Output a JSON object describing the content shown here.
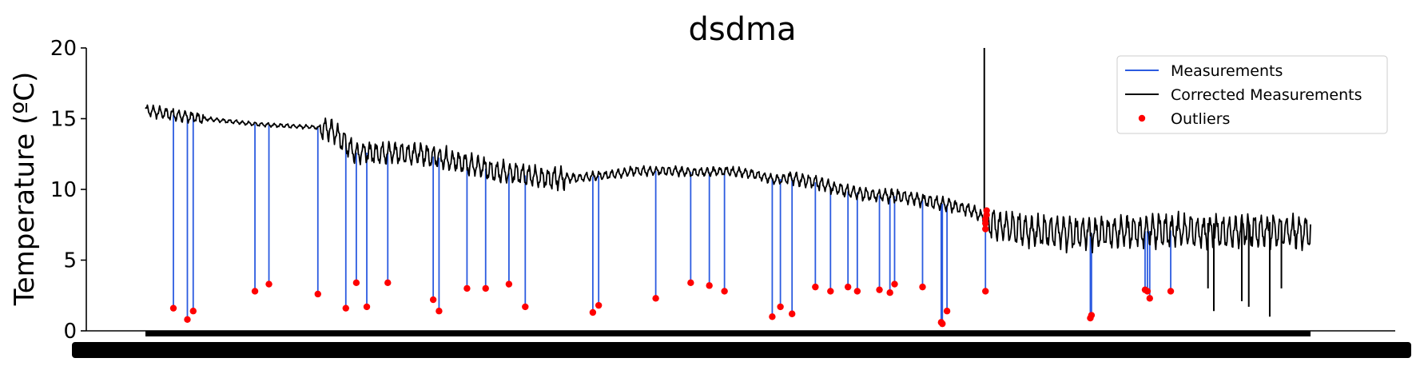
{
  "chart_data": {
    "type": "line",
    "title": "dsdma",
    "ylabel": "Temperature (ºC)",
    "xlabel": "",
    "ylim": [
      0,
      20
    ],
    "yticks": [
      0,
      5,
      10,
      15,
      20
    ],
    "xlim": [
      0,
      1
    ],
    "grid": false,
    "legend_placement": "top-right",
    "series": [
      {
        "name": "Measurements",
        "color": "#2b5be0",
        "kind": "line"
      },
      {
        "name": "Corrected Measurements",
        "color": "#000000",
        "kind": "line"
      },
      {
        "name": "Outliers",
        "color": "#ff0000",
        "kind": "marker"
      }
    ],
    "corrected_trend": [
      [
        0.0,
        15.6
      ],
      [
        0.015,
        15.4
      ],
      [
        0.03,
        15.2
      ],
      [
        0.05,
        15.0
      ],
      [
        0.075,
        14.8
      ],
      [
        0.095,
        14.6
      ],
      [
        0.12,
        14.5
      ],
      [
        0.145,
        14.4
      ],
      [
        0.16,
        14.2
      ],
      [
        0.18,
        12.6
      ],
      [
        0.21,
        12.6
      ],
      [
        0.235,
        12.5
      ],
      [
        0.255,
        12.2
      ],
      [
        0.275,
        11.8
      ],
      [
        0.3,
        11.3
      ],
      [
        0.325,
        11.0
      ],
      [
        0.345,
        10.8
      ],
      [
        0.37,
        10.8
      ],
      [
        0.395,
        11.0
      ],
      [
        0.42,
        11.3
      ],
      [
        0.45,
        11.3
      ],
      [
        0.475,
        11.2
      ],
      [
        0.5,
        11.3
      ],
      [
        0.52,
        11.1
      ],
      [
        0.54,
        10.7
      ],
      [
        0.555,
        10.8
      ],
      [
        0.575,
        10.5
      ],
      [
        0.6,
        9.9
      ],
      [
        0.625,
        9.6
      ],
      [
        0.65,
        9.5
      ],
      [
        0.67,
        9.2
      ],
      [
        0.69,
        8.9
      ],
      [
        0.71,
        8.5
      ],
      [
        0.725,
        7.6
      ],
      [
        0.75,
        7.2
      ],
      [
        0.77,
        7.0
      ],
      [
        0.8,
        6.9
      ],
      [
        0.84,
        7.0
      ],
      [
        0.88,
        7.1
      ],
      [
        0.92,
        7.0
      ],
      [
        0.96,
        7.1
      ],
      [
        1.0,
        7.0
      ]
    ],
    "outliers": [
      [
        0.024,
        1.6
      ],
      [
        0.036,
        0.8
      ],
      [
        0.041,
        1.4
      ],
      [
        0.094,
        2.8
      ],
      [
        0.106,
        3.3
      ],
      [
        0.148,
        2.6
      ],
      [
        0.172,
        1.6
      ],
      [
        0.181,
        3.4
      ],
      [
        0.19,
        1.7
      ],
      [
        0.208,
        3.4
      ],
      [
        0.247,
        2.2
      ],
      [
        0.252,
        1.4
      ],
      [
        0.276,
        3.0
      ],
      [
        0.292,
        3.0
      ],
      [
        0.312,
        3.3
      ],
      [
        0.326,
        1.7
      ],
      [
        0.384,
        1.3
      ],
      [
        0.389,
        1.8
      ],
      [
        0.438,
        2.3
      ],
      [
        0.468,
        3.4
      ],
      [
        0.484,
        3.2
      ],
      [
        0.497,
        2.8
      ],
      [
        0.538,
        1.0
      ],
      [
        0.545,
        1.7
      ],
      [
        0.555,
        1.2
      ],
      [
        0.575,
        3.1
      ],
      [
        0.588,
        2.8
      ],
      [
        0.603,
        3.1
      ],
      [
        0.611,
        2.8
      ],
      [
        0.63,
        2.9
      ],
      [
        0.639,
        2.7
      ],
      [
        0.643,
        3.3
      ],
      [
        0.667,
        3.1
      ],
      [
        0.683,
        0.6
      ],
      [
        0.684,
        0.5
      ],
      [
        0.688,
        1.4
      ],
      [
        0.721,
        2.8
      ],
      [
        0.721,
        7.2
      ],
      [
        0.721,
        7.6
      ],
      [
        0.721,
        7.9
      ],
      [
        0.722,
        8.2
      ],
      [
        0.722,
        8.5
      ],
      [
        0.811,
        0.9
      ],
      [
        0.812,
        1.1
      ],
      [
        0.858,
        2.9
      ],
      [
        0.86,
        2.8
      ],
      [
        0.862,
        2.3
      ],
      [
        0.88,
        2.8
      ]
    ],
    "corrected_spikes": [
      [
        0.72,
        20.0
      ],
      [
        0.912,
        3.0
      ],
      [
        0.917,
        1.4
      ],
      [
        0.941,
        2.1
      ],
      [
        0.947,
        1.7
      ],
      [
        0.965,
        1.0
      ],
      [
        0.975,
        3.0
      ]
    ]
  }
}
